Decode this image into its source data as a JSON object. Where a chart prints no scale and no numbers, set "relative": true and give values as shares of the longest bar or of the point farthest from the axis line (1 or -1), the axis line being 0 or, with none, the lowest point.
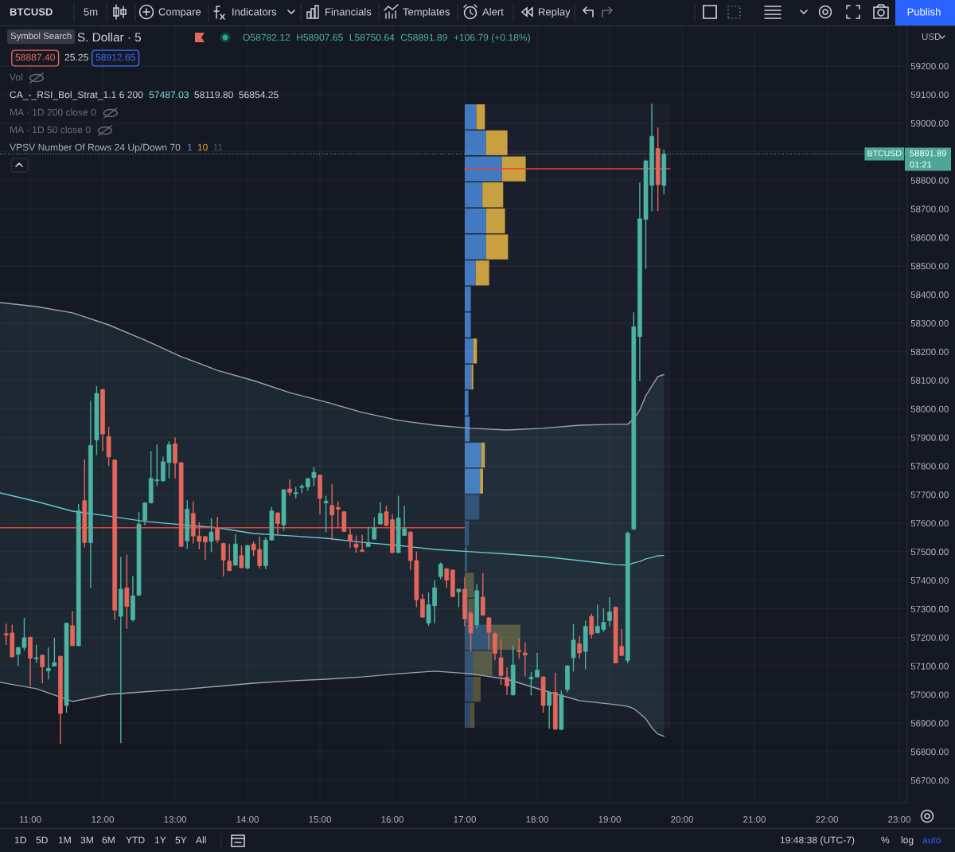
{
  "chart_data": [
    {
      "type": "candlestick",
      "x": [
        10.6667,
        10.75,
        10.8333,
        10.9167,
        11,
        11.0833,
        11.1667,
        11.25,
        11.3333,
        11.4167,
        11.5,
        11.5833,
        11.6667,
        11.75,
        11.8333,
        11.9167,
        12,
        12.0833,
        12.1667,
        12.25,
        12.3333,
        12.4167,
        12.5,
        12.5833,
        12.6667,
        12.75,
        12.8333,
        12.9167,
        13,
        13.0833,
        13.1667,
        13.25,
        13.3333,
        13.4167,
        13.5,
        13.5833,
        13.6667,
        13.75,
        13.8333,
        13.9167,
        14,
        14.0833,
        14.1667,
        14.25,
        14.3333,
        14.4167,
        14.5,
        14.5833,
        14.6667,
        14.75,
        14.8333,
        14.9167,
        15,
        15.0833,
        15.1667,
        15.25,
        15.3333,
        15.4167,
        15.5,
        15.5833,
        15.6667,
        15.75,
        15.8333,
        15.9167,
        16,
        16.0833,
        16.1667,
        16.25,
        16.3333,
        16.4167,
        16.5,
        16.5833,
        16.6667,
        16.75,
        16.8333,
        16.9167,
        17,
        17.0833,
        17.1667,
        17.25,
        17.3333,
        17.4167,
        17.5,
        17.5833,
        17.6667,
        17.75,
        17.8333,
        17.9167,
        18,
        18.0833,
        18.1667,
        18.25,
        18.3333,
        18.4167,
        18.5,
        18.5833,
        18.6667,
        18.75,
        18.8333,
        18.9167,
        19,
        19.0833,
        19.1667,
        19.25,
        19.3333,
        19.4167,
        19.5,
        19.5833,
        19.6667,
        19.75
      ],
      "ohlc": [
        [
          57213,
          57248,
          57174,
          57209
        ],
        [
          57216,
          57245,
          57130,
          57132
        ],
        [
          57141,
          57166,
          57100,
          57165
        ],
        [
          57165,
          57269,
          57155,
          57199
        ],
        [
          57201,
          57203,
          57030,
          57127
        ],
        [
          57125,
          57174,
          57111,
          57129
        ],
        [
          57138,
          57140,
          57039,
          57097
        ],
        [
          57083,
          57165,
          57053,
          57092
        ],
        [
          57100,
          57199,
          57098,
          57112
        ],
        [
          57134,
          57136,
          56828,
          56934
        ],
        [
          56962,
          57252,
          56937,
          57250
        ],
        [
          57241,
          57292,
          57171,
          57171
        ],
        [
          57171,
          57668,
          57169,
          57643
        ],
        [
          57679,
          57824,
          57516,
          57532
        ],
        [
          57532,
          58029,
          57374,
          57872
        ],
        [
          57891,
          58080,
          57838,
          58054
        ],
        [
          58068,
          58070,
          57852,
          57912
        ],
        [
          57903,
          57937,
          57801,
          57832
        ],
        [
          57821,
          57823,
          57262,
          57296
        ],
        [
          57274,
          57482,
          56830,
          57369
        ],
        [
          57374,
          57490,
          57230,
          57309
        ],
        [
          57262,
          57415,
          57255,
          57346
        ],
        [
          57348,
          57640,
          57345,
          57597
        ],
        [
          57610,
          57673,
          57592,
          57671
        ],
        [
          57671,
          57852,
          57669,
          57757
        ],
        [
          57748,
          57875,
          57731,
          57752
        ],
        [
          57748,
          57833,
          57746,
          57815
        ],
        [
          57812,
          57887,
          57757,
          57875
        ],
        [
          57878,
          57900,
          57757,
          57810
        ],
        [
          57812,
          57814,
          57516,
          57519
        ],
        [
          57538,
          57680,
          57510,
          57649
        ],
        [
          57634,
          57677,
          57529,
          57555
        ],
        [
          57555,
          57603,
          57508,
          57536
        ],
        [
          57553,
          57555,
          57471,
          57534
        ],
        [
          57536,
          57618,
          57499,
          57569
        ],
        [
          57581,
          57622,
          57531,
          57541
        ],
        [
          57529,
          57531,
          57414,
          57471
        ],
        [
          57467,
          57527,
          57432,
          57434
        ],
        [
          57453,
          57562,
          57451,
          57527
        ],
        [
          57487,
          57522,
          57443,
          57444
        ],
        [
          57443,
          57524,
          57439,
          57522
        ],
        [
          57527,
          57536,
          57485,
          57506
        ],
        [
          57508,
          57553,
          57441,
          57451
        ],
        [
          57451,
          57550,
          57439,
          57541
        ],
        [
          57541,
          57657,
          57539,
          57643
        ],
        [
          57636,
          57638,
          57559,
          57599
        ],
        [
          57594,
          57719,
          57573,
          57717
        ],
        [
          57720,
          57753,
          57696,
          57708
        ],
        [
          57703,
          57727,
          57687,
          57707
        ],
        [
          57725,
          57736,
          57705,
          57729
        ],
        [
          57727,
          57758,
          57714,
          57756
        ],
        [
          57759,
          57796,
          57729,
          57778
        ],
        [
          57768,
          57770,
          57631,
          57687
        ],
        [
          57671,
          57696,
          57569,
          57677
        ],
        [
          57662,
          57736,
          57541,
          57629
        ],
        [
          57655,
          57677,
          57583,
          57649
        ],
        [
          57640,
          57642,
          57569,
          57571
        ],
        [
          57559,
          57583,
          57513,
          57538
        ],
        [
          57527,
          57557,
          57497,
          57516
        ],
        [
          57506,
          57559,
          57499,
          57501
        ],
        [
          57518,
          57587,
          57516,
          57533
        ],
        [
          57544,
          57620,
          57542,
          57584
        ],
        [
          57597,
          57674,
          57595,
          57634
        ],
        [
          57640,
          57661,
          57590,
          57592
        ],
        [
          57612,
          57631,
          57495,
          57497
        ],
        [
          57497,
          57696,
          57495,
          57618
        ],
        [
          57557,
          57661,
          57555,
          57581
        ],
        [
          57569,
          57571,
          57436,
          57469
        ],
        [
          57469,
          57501,
          57306,
          57332
        ],
        [
          57334,
          57352,
          57269,
          57271
        ],
        [
          57250,
          57358,
          57241,
          57315
        ],
        [
          57311,
          57401,
          57250,
          57374
        ],
        [
          57413,
          57462,
          57404,
          57457
        ],
        [
          57441,
          57443,
          57374,
          57401
        ],
        [
          57436,
          57438,
          57341,
          57343
        ],
        [
          57360,
          57371,
          57306,
          57369
        ],
        [
          57369,
          57411,
          57239,
          57265
        ],
        [
          57285,
          57290,
          57151,
          57216
        ],
        [
          57244,
          57387,
          57231,
          57364
        ],
        [
          57341,
          57425,
          57276,
          57278
        ],
        [
          57269,
          57271,
          57157,
          57218
        ],
        [
          57213,
          57220,
          57120,
          57144
        ],
        [
          57129,
          57194,
          57034,
          57067
        ],
        [
          57061,
          57095,
          56999,
          57030
        ],
        [
          56999,
          57172,
          56997,
          57104
        ],
        [
          57155,
          57197,
          57126,
          57150
        ],
        [
          57146,
          57183,
          57064,
          57139
        ],
        [
          57055,
          57079,
          56997,
          57061
        ],
        [
          57062,
          57146,
          57060,
          57086
        ],
        [
          57062,
          57064,
          56937,
          56962
        ],
        [
          56962,
          57010,
          56881,
          57008
        ],
        [
          57008,
          57076,
          56877,
          56879
        ],
        [
          56878,
          57014,
          56876,
          56999
        ],
        [
          57018,
          57103,
          57007,
          57101
        ],
        [
          57129,
          57246,
          57081,
          57191
        ],
        [
          57178,
          57206,
          57127,
          57146
        ],
        [
          57151,
          57259,
          57088,
          57239
        ],
        [
          57274,
          57283,
          57197,
          57211
        ],
        [
          57216,
          57315,
          57214,
          57239
        ],
        [
          57228,
          57302,
          57220,
          57253
        ],
        [
          57259,
          57341,
          57239,
          57289
        ],
        [
          57306,
          57308,
          57109,
          57111
        ],
        [
          57169,
          57230,
          57135,
          57137
        ],
        [
          57120,
          57570,
          57110,
          57565
        ],
        [
          57580,
          58338,
          57575,
          58287
        ],
        [
          58253,
          58792,
          58098,
          58665
        ],
        [
          58663,
          58872,
          58490,
          58868
        ],
        [
          58782,
          59068,
          58692,
          58954
        ],
        [
          58911,
          58985,
          58692,
          58785.1
        ],
        [
          58782.12,
          58907.65,
          58750.64,
          58891.89
        ]
      ],
      "colors": [
        "#e5675b",
        "#e5675b",
        "#4db3a2",
        "#4db3a2",
        "#e5675b",
        "#4db3a2",
        "#e5675b",
        "#4db3a2",
        "#4db3a2",
        "#e5675b",
        "#4db3a2",
        "#e5675b",
        "#4db3a2",
        "#e5675b",
        "#4db3a2",
        "#4db3a2",
        "#e5675b",
        "#e5675b",
        "#e5675b",
        "#4db3a2",
        "#e5675b",
        "#4db3a2",
        "#4db3a2",
        "#4db3a2",
        "#4db3a2",
        "#4db3a2",
        "#4db3a2",
        "#4db3a2",
        "#e5675b",
        "#e5675b",
        "#4db3a2",
        "#e5675b",
        "#e5675b",
        "#e5675b",
        "#4db3a2",
        "#e5675b",
        "#e5675b",
        "#e5675b",
        "#4db3a2",
        "#e5675b",
        "#4db3a2",
        "#e5675b",
        "#e5675b",
        "#4db3a2",
        "#4db3a2",
        "#e5675b",
        "#4db3a2",
        "#e5675b",
        "#4db3a2",
        "#4db3a2",
        "#4db3a2",
        "#4db3a2",
        "#e5675b",
        "#4db3a2",
        "#e5675b",
        "#e5675b",
        "#e5675b",
        "#e5675b",
        "#e5675b",
        "#e5675b",
        "#4db3a2",
        "#4db3a2",
        "#4db3a2",
        "#e5675b",
        "#e5675b",
        "#4db3a2",
        "#4db3a2",
        "#e5675b",
        "#e5675b",
        "#e5675b",
        "#4db3a2",
        "#4db3a2",
        "#4db3a2",
        "#e5675b",
        "#e5675b",
        "#4db3a2",
        "#e5675b",
        "#e5675b",
        "#4db3a2",
        "#e5675b",
        "#e5675b",
        "#e5675b",
        "#e5675b",
        "#e5675b",
        "#4db3a2",
        "#e5675b",
        "#e5675b",
        "#4db3a2",
        "#4db3a2",
        "#e5675b",
        "#4db3a2",
        "#e5675b",
        "#4db3a2",
        "#4db3a2",
        "#4db3a2",
        "#e5675b",
        "#4db3a2",
        "#e5675b",
        "#4db3a2",
        "#4db3a2",
        "#4db3a2",
        "#e5675b",
        "#e5675b",
        "#4db3a2",
        "#4db3a2",
        "#4db3a2",
        "#4db3a2",
        "#4db3a2",
        "#e5675b",
        "#4db3a2"
      ],
      "series": [
        {
          "type": "line",
          "color": "#9aa3ae",
          "x": [
            10.5833,
            11.0833,
            11.5833,
            12.0833,
            12.5833,
            13.0833,
            13.5833,
            14.0833,
            14.5833,
            15.0833,
            15.5833,
            16.0833,
            16.5833,
            17.0833,
            17.5833,
            18.0833,
            18.5833,
            19.0833,
            19.25,
            19.3333,
            19.4167,
            19.5,
            19.5833,
            19.6667,
            19.75
          ],
          "values": [
            58372,
            58358,
            58336,
            58294,
            58241,
            58183,
            58135,
            58099,
            58057,
            58024,
            57988,
            57960,
            57943,
            57932,
            57926,
            57932,
            57943,
            57946,
            57946,
            57965,
            57996,
            58046,
            58080,
            58113,
            58119.8
          ]
        },
        {
          "type": "line",
          "color": "#6cc7cf",
          "x": [
            10.5833,
            11.0833,
            11.5833,
            12.0833,
            12.5833,
            13.0833,
            13.5833,
            14.0833,
            14.5833,
            15.0833,
            15.5833,
            16.0833,
            16.5833,
            17.0833,
            17.5833,
            18.0833,
            18.5833,
            19.0833,
            19.25,
            19.3333,
            19.4167,
            19.5,
            19.5833,
            19.6667,
            19.75
          ],
          "values": [
            57706,
            57676,
            57642,
            57625,
            57606,
            57595,
            57584,
            57564,
            57556,
            57547,
            57533,
            57522,
            57508,
            57500,
            57492,
            57483,
            57469,
            57455,
            57453,
            57461,
            57466,
            57475,
            57480,
            57486,
            57487.03
          ],
          "lower": [
            57043,
            57021,
            56976,
            57001,
            57010,
            57018,
            57029,
            57040,
            57048,
            57054,
            57062,
            57073,
            57082,
            57073,
            57054,
            57015,
            56979,
            56965,
            56959,
            56951,
            56934,
            56915,
            56884,
            56862,
            56854.25
          ],
          "upper": [
            58372,
            58358,
            58336,
            58294,
            58241,
            58183,
            58135,
            58099,
            58057,
            58024,
            57988,
            57960,
            57943,
            57932,
            57926,
            57932,
            57943,
            57946,
            57946,
            57965,
            57996,
            58046,
            58080,
            58113,
            58119.8
          ]
        },
        {
          "type": "line",
          "color": "#9aa3ae",
          "x": [
            10.5833,
            11.0833,
            11.5833,
            12.0833,
            12.5833,
            13.0833,
            13.5833,
            14.0833,
            14.5833,
            15.0833,
            15.5833,
            16.0833,
            16.5833,
            17.0833,
            17.5833,
            18.0833,
            18.5833,
            19.0833,
            19.25,
            19.3333,
            19.4167,
            19.5,
            19.5833,
            19.6667,
            19.75
          ],
          "values": [
            57043,
            57021,
            56976,
            57001,
            57010,
            57018,
            57029,
            57040,
            57048,
            57054,
            57062,
            57073,
            57082,
            57073,
            57054,
            57015,
            56979,
            56965,
            56959,
            56951,
            56934,
            56915,
            56884,
            56862,
            56854.25
          ]
        },
        {
          "type": "line",
          "color": "#e2443a",
          "x": [
            10.5833,
            17
          ],
          "values": [
            57584,
            57584
          ]
        },
        {
          "type": "line",
          "color": "#e2443a",
          "x": [
            17,
            19.8333
          ],
          "values": [
            58840,
            58840
          ]
        }
      ],
      "ref_lines": [
        {
          "axis": "y",
          "value": 58891.89,
          "label": "BTCUSD",
          "color": "#4ea699",
          "line_style": "dotted"
        }
      ],
      "xlim": [
        10.582,
        23.11
      ],
      "ylim": [
        56622,
        59339
      ],
      "xticks": [
        {
          "value": 11,
          "label": "11:00"
        },
        {
          "value": 12,
          "label": "12:00"
        },
        {
          "value": 13,
          "label": "13:00"
        },
        {
          "value": 14,
          "label": "14:00"
        },
        {
          "value": 15,
          "label": "15:00"
        },
        {
          "value": 16,
          "label": "16:00"
        },
        {
          "value": 17,
          "label": "17:00"
        },
        {
          "value": 18,
          "label": "18:00"
        },
        {
          "value": 19,
          "label": "19:00"
        },
        {
          "value": 20,
          "label": "20:00"
        },
        {
          "value": 21,
          "label": "21:00"
        },
        {
          "value": 22,
          "label": "22:00"
        },
        {
          "value": 23,
          "label": "23:00"
        }
      ],
      "yticks": [
        {
          "value": 56700,
          "label": "56700.00"
        },
        {
          "value": 56800,
          "label": "56800.00"
        },
        {
          "value": 56900,
          "label": "56900.00"
        },
        {
          "value": 57000,
          "label": "57000.00"
        },
        {
          "value": 57100,
          "label": "57100.00"
        },
        {
          "value": 57200,
          "label": "57200.00"
        },
        {
          "value": 57300,
          "label": "57300.00"
        },
        {
          "value": 57400,
          "label": "57400.00"
        },
        {
          "value": 57500,
          "label": "57500.00"
        },
        {
          "value": 57600,
          "label": "57600.00"
        },
        {
          "value": 57700,
          "label": "57700.00"
        },
        {
          "value": 57800,
          "label": "57800.00"
        },
        {
          "value": 57900,
          "label": "57900.00"
        },
        {
          "value": 58000,
          "label": "58000.00"
        },
        {
          "value": 58100,
          "label": "58100.00"
        },
        {
          "value": 58200,
          "label": "58200.00"
        },
        {
          "value": 58300,
          "label": "58300.00"
        },
        {
          "value": 58400,
          "label": "58400.00"
        },
        {
          "value": 58500,
          "label": "58500.00"
        },
        {
          "value": 58600,
          "label": "58600.00"
        },
        {
          "value": 58700,
          "label": "58700.00"
        },
        {
          "value": 58800,
          "label": "58800.00"
        },
        {
          "value": 58900,
          "label": null
        },
        {
          "value": 59000,
          "label": "59000.00"
        },
        {
          "value": 59100,
          "label": "59100.00"
        },
        {
          "value": 59200,
          "label": "59200.00"
        }
      ],
      "grid": true,
      "annotations": [
        "BTCUSD",
        "5m",
        "Compare",
        "Indicators",
        "Financials",
        "Templates",
        "Alert",
        "Replay",
        "Publish",
        "Symbol Search",
        "S. Dollar · 5",
        "O58782.12",
        "H58907.65",
        "L58750.64",
        "C58891.89",
        "+106.79 (+0.18%)",
        "58887.40",
        "25.25",
        "58912.65",
        "Vol",
        "CA_-_RSI_Bol_Strat_1.1 6 200",
        "57487.03",
        "58119.80",
        "56854.25",
        "MA · 1D 200 close 0",
        "MA · 1D 50 close 0",
        "VPSV Number Of Rows 24 Up/Down 70",
        "1",
        "10",
        "11",
        "58891.89",
        "01:21",
        "USD",
        "1D",
        "5D",
        "1M",
        "3M",
        "6M",
        "YTD",
        "1Y",
        "5Y",
        "All",
        "19:48:38 (UTC-7)",
        "%",
        "log",
        "auto"
      ]
    },
    {
      "type": "bar",
      "orientation": "horizontal",
      "stacked": true,
      "relative": true,
      "categories": [
        null,
        null,
        null,
        null,
        null,
        null,
        null,
        null,
        null,
        null,
        null,
        null,
        null,
        null,
        null,
        null,
        null,
        null,
        null,
        null,
        null,
        null,
        null,
        null
      ],
      "series": [
        {
          "colors": [
            "#4279c0",
            "#4279c0",
            "#4279c0",
            "#4279c0",
            "#4279c0",
            "#4279c0",
            "#4279c0",
            "#4279c0",
            "#4279c0",
            "#4279c0",
            "#4279c0",
            "#4279c0",
            "#4279c0",
            "#4279c0",
            "#4279c0",
            "#2e4a6e",
            "#2e4a6e",
            "#2e4a6e",
            "#2e4a6e",
            "#2e4a6e",
            "#2e4a6e",
            "#2e4a6e",
            "#2e4a6e",
            "#2e4a6e"
          ],
          "values": [
            0.19,
            0.35,
            0.61,
            0.29,
            0.35,
            0.35,
            0.18,
            0.1,
            0.1,
            0.14,
            0.11,
            0.06,
            0.08,
            0.27,
            0.25,
            0.24,
            0.07,
            0.04,
            null,
            0.06,
            0.43,
            0.13,
            0.13,
            0.09
          ]
        },
        {
          "colors": [
            "#c9a03f",
            "#c9a03f",
            "#c9a03f",
            "#c9a03f",
            "#c9a03f",
            "#c9a03f",
            "#c9a03f",
            "#c9a03f",
            "#c9a03f",
            "#c9a03f",
            "#c9a03f",
            "#c9a03f",
            "#c9a03f",
            "#c9a03f",
            "#c9a03f",
            "#555239",
            "#555239",
            "#555239",
            "#555239",
            "#555239",
            "#555239",
            "#555239",
            "#555239",
            "#555239"
          ],
          "values": [
            0.14,
            0.35,
            0.39,
            0.34,
            0.31,
            0.36,
            0.22,
            null,
            null,
            0.06,
            0.03,
            null,
            null,
            0.06,
            0.05,
            null,
            null,
            null,
            0.15,
            0.09,
            0.48,
            0.32,
            0.13,
            0.07
          ]
        }
      ]
    }
  ]
}
